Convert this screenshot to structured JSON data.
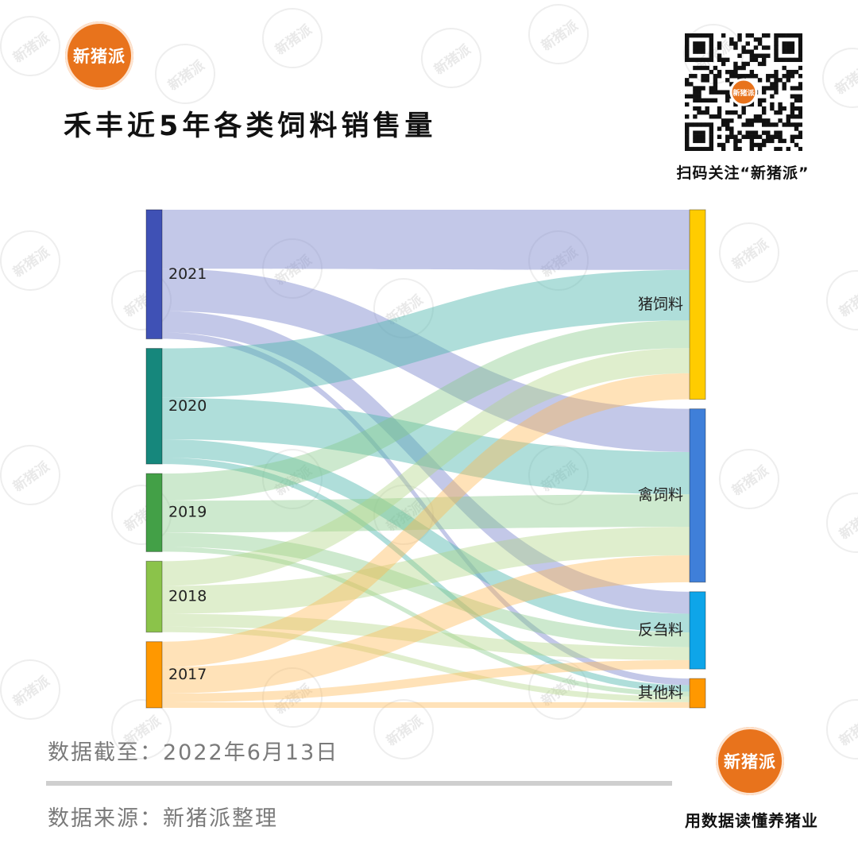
{
  "brand": {
    "logo_text": "新猪派"
  },
  "title": "禾丰近5年各类饲料销售量",
  "qr": {
    "caption": "扫码关注“新猪派”",
    "center_text": "新猪派"
  },
  "chart_data": {
    "type": "sankey",
    "title": "禾丰近5年各类饲料销售量",
    "source_nodes": [
      {
        "name": "2021",
        "color": "#3f51b5"
      },
      {
        "name": "2020",
        "color": "#16877c"
      },
      {
        "name": "2019",
        "color": "#43a047"
      },
      {
        "name": "2018",
        "color": "#8bc34a"
      },
      {
        "name": "2017",
        "color": "#ff9800"
      }
    ],
    "target_nodes": [
      {
        "name": "猪饲料",
        "color": "#ffcc00"
      },
      {
        "name": "禽饲料",
        "color": "#3f7fd9"
      },
      {
        "name": "反刍料",
        "color": "#0ea5e9"
      },
      {
        "name": "其他料",
        "color": "#ff9800"
      }
    ],
    "links": [
      {
        "source": "2021",
        "target": "猪饲料",
        "value": 74
      },
      {
        "source": "2021",
        "target": "禽饲料",
        "value": 53
      },
      {
        "source": "2021",
        "target": "反刍料",
        "value": 27
      },
      {
        "source": "2021",
        "target": "其他料",
        "value": 8
      },
      {
        "source": "2020",
        "target": "猪饲料",
        "value": 62
      },
      {
        "source": "2020",
        "target": "禽饲料",
        "value": 52
      },
      {
        "source": "2020",
        "target": "反刍料",
        "value": 23
      },
      {
        "source": "2020",
        "target": "其他料",
        "value": 8
      },
      {
        "source": "2019",
        "target": "猪饲料",
        "value": 34
      },
      {
        "source": "2019",
        "target": "禽饲料",
        "value": 40
      },
      {
        "source": "2019",
        "target": "反刍料",
        "value": 18
      },
      {
        "source": "2019",
        "target": "其他料",
        "value": 6
      },
      {
        "source": "2018",
        "target": "猪饲料",
        "value": 31
      },
      {
        "source": "2018",
        "target": "禽饲料",
        "value": 35
      },
      {
        "source": "2018",
        "target": "反刍料",
        "value": 16
      },
      {
        "source": "2018",
        "target": "其他料",
        "value": 7
      },
      {
        "source": "2017",
        "target": "猪饲料",
        "value": 32
      },
      {
        "source": "2017",
        "target": "禽饲料",
        "value": 33
      },
      {
        "source": "2017",
        "target": "反刍料",
        "value": 11
      },
      {
        "source": "2017",
        "target": "其他料",
        "value": 7
      }
    ]
  },
  "footer": {
    "data_cutoff": "数据截至：2022年6月13日",
    "data_source": "数据来源：新猪派整理",
    "logo_text": "新猪派",
    "slogan": "用数据读懂养猪业"
  },
  "watermark_text": "新猪派"
}
